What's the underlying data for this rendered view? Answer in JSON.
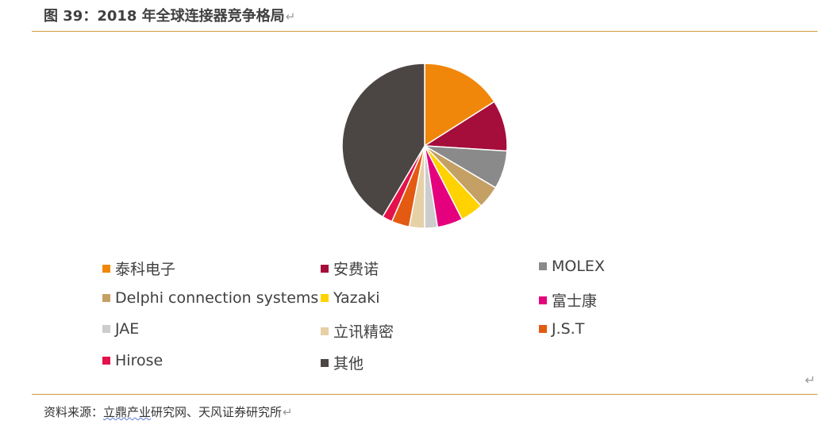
{
  "figure": {
    "title": "图 39：2018 年全球连接器竞争格局",
    "return_mark": "↵"
  },
  "chart_data": {
    "type": "pie",
    "title": "",
    "legend_position": "bottom",
    "slices": [
      {
        "name": "泰科电子",
        "value": 16,
        "color": "#f0870a"
      },
      {
        "name": "安费诺",
        "value": 10,
        "color": "#a50d3b"
      },
      {
        "name": "MOLEX",
        "value": 7.5,
        "color": "#8a8a8a"
      },
      {
        "name": "Delphi connection systems",
        "value": 4.5,
        "color": "#c4a064"
      },
      {
        "name": "Yazaki",
        "value": 4.5,
        "color": "#ffd200"
      },
      {
        "name": "富士康",
        "value": 5,
        "color": "#e5007e"
      },
      {
        "name": "JAE",
        "value": 2.5,
        "color": "#cccccc"
      },
      {
        "name": "立讯精密",
        "value": 3,
        "color": "#e6d0a6"
      },
      {
        "name": "J.S.T",
        "value": 3.5,
        "color": "#e35a12"
      },
      {
        "name": "Hirose",
        "value": 2,
        "color": "#e3124b"
      },
      {
        "name": "其他",
        "value": 41.5,
        "color": "#4b4644"
      }
    ]
  },
  "source": {
    "label": "资料来源：",
    "underlined": "立鼎产业",
    "rest": "研究网、天风证券研究所"
  }
}
